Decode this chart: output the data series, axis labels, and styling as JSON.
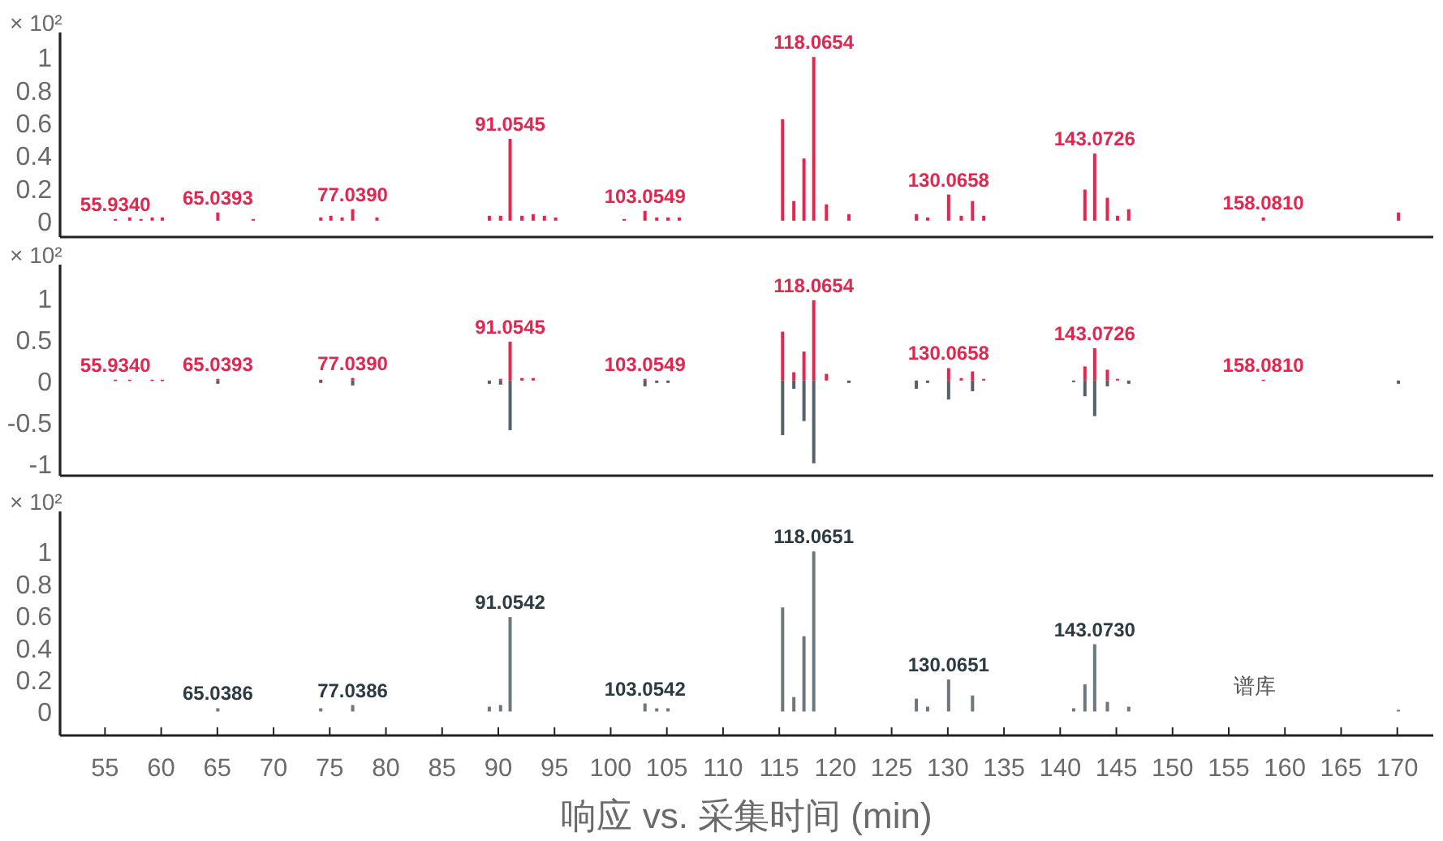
{
  "chart_data": [
    {
      "type": "bar",
      "xlim": [
        51,
        173.2
      ],
      "ylim": [
        -0.1,
        1.15
      ],
      "yticks": [
        0,
        0.2,
        0.4,
        0.6,
        0.8,
        1
      ],
      "tick_labels": "y",
      "series": [
        {
          "color": "#e3264e",
          "x": [
            55.93,
            57.2,
            58.2,
            59.2,
            60.1,
            65.04,
            68.2,
            74.2,
            75.1,
            76.1,
            77.04,
            79.2,
            89.2,
            90.2,
            91.05,
            92.1,
            93.1,
            94.1,
            95.1,
            101.2,
            103.05,
            104.1,
            105.1,
            106.1,
            115.3,
            116.3,
            117.2,
            118.07,
            119.2,
            121.2,
            127.2,
            128.2,
            130.07,
            131.2,
            132.2,
            133.2,
            142.2,
            143.07,
            144.2,
            145.1,
            146.1,
            158.08,
            170.1
          ],
          "values": [
            0.01,
            0.02,
            0.01,
            0.02,
            0.02,
            0.05,
            0.01,
            0.02,
            0.03,
            0.02,
            0.07,
            0.02,
            0.03,
            0.03,
            0.5,
            0.03,
            0.04,
            0.03,
            0.02,
            0.01,
            0.06,
            0.02,
            0.02,
            0.02,
            0.62,
            0.12,
            0.38,
            1.0,
            0.1,
            0.04,
            0.04,
            0.02,
            0.16,
            0.03,
            0.12,
            0.03,
            0.19,
            0.41,
            0.14,
            0.03,
            0.07,
            0.02,
            0.05
          ]
        }
      ],
      "annotations": [
        "× 10²",
        {
          "text": "55.9340",
          "x": 55.93,
          "y": 0.01
        },
        {
          "text": "65.0393",
          "x": 65.04,
          "y": 0.05
        },
        {
          "text": "77.0390",
          "x": 77.04,
          "y": 0.07
        },
        {
          "text": "91.0545",
          "x": 91.05,
          "y": 0.5
        },
        {
          "text": "103.0549",
          "x": 103.05,
          "y": 0.06
        },
        {
          "text": "118.0654",
          "x": 118.07,
          "y": 1.0
        },
        {
          "text": "130.0658",
          "x": 130.07,
          "y": 0.16
        },
        {
          "text": "143.0726",
          "x": 143.07,
          "y": 0.41
        },
        {
          "text": "158.0810",
          "x": 158.08,
          "y": 0.02
        }
      ]
    },
    {
      "type": "bar",
      "xlim": [
        51,
        173.2
      ],
      "ylim": [
        -1.15,
        1.4
      ],
      "yticks": [
        -1,
        -0.5,
        0,
        0.5,
        1
      ],
      "tick_labels": "y",
      "series": [
        {
          "color": "#e3264e",
          "x": [
            55.93,
            57.2,
            59.2,
            60.1,
            65.04,
            74.2,
            77.04,
            90.2,
            91.05,
            92.1,
            93.1,
            103.05,
            115.3,
            116.3,
            117.2,
            118.07,
            119.2,
            130.07,
            131.2,
            132.2,
            133.2,
            142.2,
            143.07,
            144.2,
            145.1,
            158.08
          ],
          "values": [
            0.01,
            0.01,
            0.01,
            0.01,
            0.02,
            0.01,
            0.03,
            0.02,
            0.47,
            0.03,
            0.03,
            0.02,
            0.59,
            0.1,
            0.35,
            0.97,
            0.08,
            0.15,
            0.03,
            0.11,
            0.02,
            0.17,
            0.39,
            0.13,
            0.02,
            0.01
          ]
        },
        {
          "color": "#55616a",
          "x": [
            65.04,
            74.2,
            77.04,
            89.2,
            90.2,
            91.05,
            103.05,
            104.1,
            105.1,
            115.3,
            116.3,
            117.2,
            118.07,
            121.2,
            127.2,
            128.2,
            130.07,
            132.2,
            141.2,
            142.2,
            143.07,
            144.2,
            146.1,
            170.1
          ],
          "values": [
            -0.04,
            -0.03,
            -0.06,
            -0.04,
            -0.05,
            -0.6,
            -0.07,
            -0.03,
            -0.03,
            -0.66,
            -0.1,
            -0.49,
            -1.0,
            -0.03,
            -0.1,
            -0.03,
            -0.23,
            -0.13,
            -0.02,
            -0.19,
            -0.43,
            -0.07,
            -0.04,
            -0.04
          ]
        }
      ],
      "annotations": [
        "× 10²",
        {
          "text": "55.9340",
          "x": 55.93,
          "y": 0.01
        },
        {
          "text": "65.0393",
          "x": 65.04,
          "y": 0.02
        },
        {
          "text": "77.0390",
          "x": 77.04,
          "y": 0.03
        },
        {
          "text": "91.0545",
          "x": 91.05,
          "y": 0.47
        },
        {
          "text": "103.0549",
          "x": 103.05,
          "y": 0.02
        },
        {
          "text": "118.0654",
          "x": 118.07,
          "y": 0.97
        },
        {
          "text": "130.0658",
          "x": 130.07,
          "y": 0.15
        },
        {
          "text": "143.0726",
          "x": 143.07,
          "y": 0.39
        },
        {
          "text": "158.0810",
          "x": 158.08,
          "y": 0.01
        }
      ]
    },
    {
      "type": "bar",
      "xlim": [
        51,
        173.2
      ],
      "ylim": [
        -0.15,
        1.25
      ],
      "yticks": [
        0,
        0.2,
        0.4,
        0.6,
        0.8,
        1
      ],
      "xticks": [
        55,
        60,
        65,
        70,
        75,
        80,
        85,
        90,
        95,
        100,
        105,
        110,
        115,
        120,
        125,
        130,
        135,
        140,
        145,
        150,
        155,
        160,
        165,
        170
      ],
      "xlabel": "响应 vs. 采集时间 (min)",
      "series": [
        {
          "color": "#6d777e",
          "x": [
            65.04,
            74.2,
            77.04,
            89.2,
            90.2,
            91.05,
            103.05,
            104.1,
            105.1,
            115.3,
            116.3,
            117.2,
            118.07,
            127.2,
            128.2,
            130.07,
            132.2,
            141.2,
            142.2,
            143.07,
            144.2,
            146.1,
            170.1
          ],
          "values": [
            0.02,
            0.02,
            0.04,
            0.03,
            0.04,
            0.59,
            0.05,
            0.02,
            0.02,
            0.65,
            0.09,
            0.47,
            1.0,
            0.08,
            0.03,
            0.2,
            0.1,
            0.02,
            0.17,
            0.42,
            0.06,
            0.03,
            0.01
          ]
        }
      ],
      "annotations": [
        "× 10²",
        "谱库",
        {
          "text": "65.0386",
          "x": 65.04,
          "y": 0.02
        },
        {
          "text": "77.0386",
          "x": 77.04,
          "y": 0.04
        },
        {
          "text": "91.0542",
          "x": 91.05,
          "y": 0.59
        },
        {
          "text": "103.0542",
          "x": 103.05,
          "y": 0.05
        },
        {
          "text": "118.0651",
          "x": 118.07,
          "y": 1.0
        },
        {
          "text": "130.0651",
          "x": 130.07,
          "y": 0.2
        },
        {
          "text": "143.0730",
          "x": 143.07,
          "y": 0.42
        }
      ]
    }
  ]
}
